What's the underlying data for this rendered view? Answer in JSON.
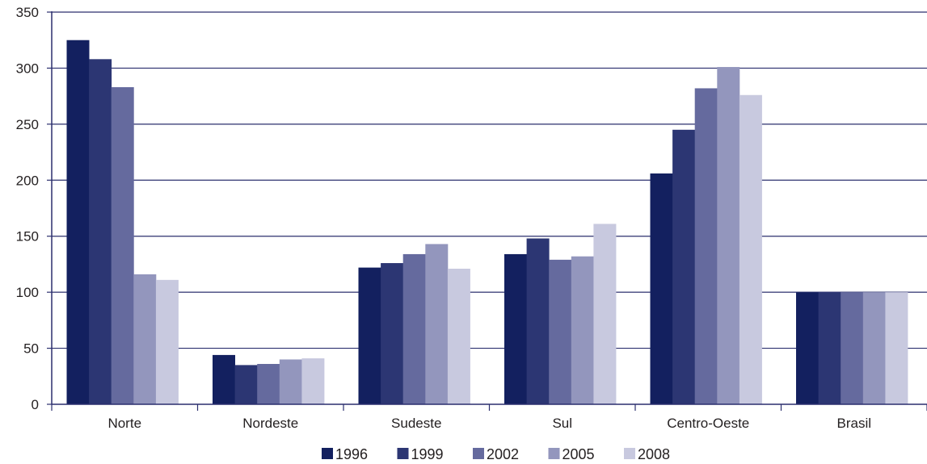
{
  "chart_data": {
    "type": "bar",
    "title": "",
    "xlabel": "",
    "ylabel": "",
    "ylim": [
      0,
      350
    ],
    "yticks": [
      0,
      50,
      100,
      150,
      200,
      250,
      300,
      350
    ],
    "grid": true,
    "legend_position": "bottom",
    "categories": [
      "Norte",
      "Nordeste",
      "Sudeste",
      "Sul",
      "Centro-Oeste",
      "Brasil"
    ],
    "series": [
      {
        "name": "1996",
        "color": "#13205f",
        "values": [
          325,
          44,
          122,
          134,
          206,
          100
        ]
      },
      {
        "name": "1999",
        "color": "#2c3673",
        "values": [
          308,
          35,
          126,
          148,
          245,
          100
        ]
      },
      {
        "name": "2002",
        "color": "#656a9e",
        "values": [
          283,
          36,
          134,
          129,
          282,
          100
        ]
      },
      {
        "name": "2005",
        "color": "#9396bd",
        "values": [
          116,
          40,
          143,
          132,
          301,
          100
        ]
      },
      {
        "name": "2008",
        "color": "#c8c9df",
        "values": [
          111,
          41,
          121,
          161,
          276,
          100
        ]
      }
    ]
  },
  "colors": {
    "axis": "#2b2f6e",
    "grid": "#2b2f6e"
  }
}
